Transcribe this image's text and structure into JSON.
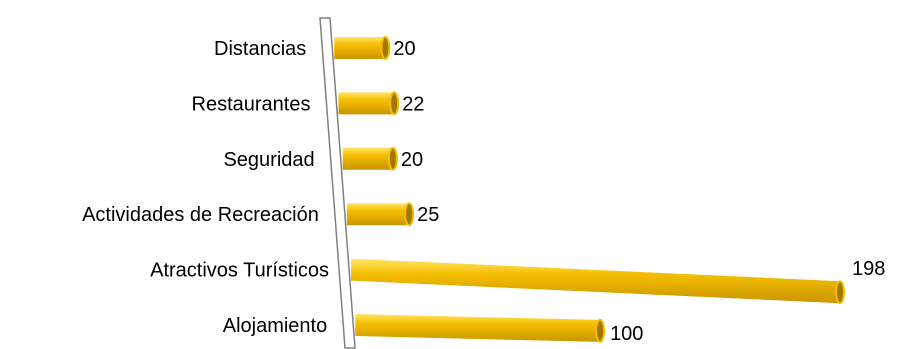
{
  "chart_data": {
    "type": "bar",
    "orientation": "horizontal",
    "categories": [
      "Distancias",
      "Restaurantes",
      "Seguridad",
      "Actividades de Recreación",
      "Atractivos Turísticos",
      "Alojamiento"
    ],
    "values": [
      20,
      22,
      20,
      25,
      198,
      100
    ],
    "value_labels": [
      "20",
      "22",
      "20",
      "25",
      "198",
      "100"
    ],
    "xlim": [
      0,
      198
    ],
    "grid": false,
    "legend": "none",
    "style": "3d-cylinder",
    "colors": {
      "bar": "#F5BE00",
      "bar_highlight": "#FFE566",
      "bar_shadow": "#C99500",
      "bar_end": "#A07800",
      "wall": "#7F7F7F"
    }
  }
}
